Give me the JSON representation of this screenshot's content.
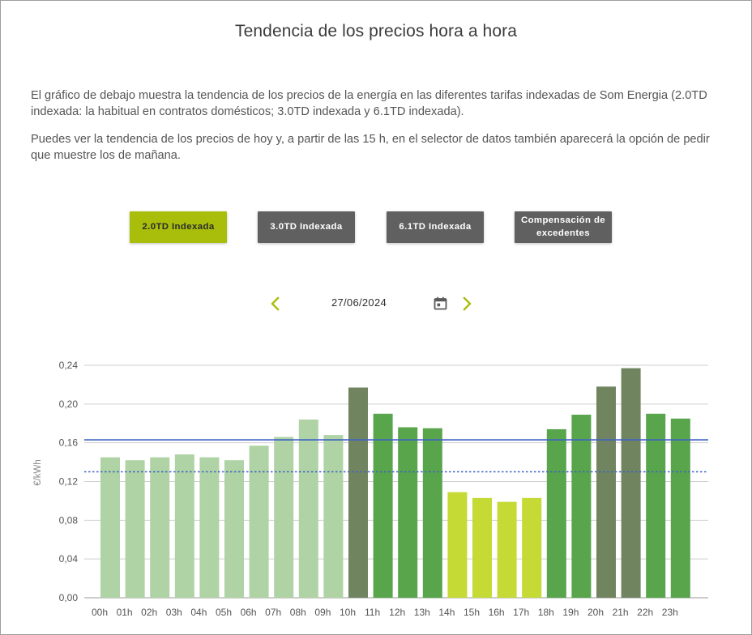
{
  "page": {
    "title": "Tendencia de los precios hora a hora",
    "paragraph1": "El gráfico de debajo muestra la tendencia de los precios de la energía en las diferentes tarifas indexadas de Som Energia (2.0TD indexada: la habitual en contratos domésticos; 3.0TD indexada y 6.1TD indexada).",
    "paragraph2": "Puedes ver la tendencia de los precios de hoy y, a partir de las 15 h, en el selector de datos también aparecerá la opción de pedir que muestre los de mañana."
  },
  "tabs": [
    {
      "label": "2.0TD Indexada",
      "active": true
    },
    {
      "label": "3.0TD Indexada",
      "active": false
    },
    {
      "label": "6.1TD Indexada",
      "active": false
    },
    {
      "label": "Compensación de excedentes",
      "active": false
    }
  ],
  "date_selector": {
    "value": "27/06/2024",
    "prev_icon": "chevron-left-icon",
    "next_icon": "chevron-right-icon",
    "calendar_icon": "calendar-icon"
  },
  "colors": {
    "accent": "#a8be0b",
    "tab_inactive": "#606060",
    "bar_very_light": "#afd3a4",
    "bar_yellow": "#c5da34",
    "bar_green": "#58a54c",
    "bar_dark": "#718460",
    "ref_line": "#3f63c3"
  },
  "chart_data": {
    "type": "bar",
    "ylabel": "€/kWh",
    "ylim": [
      0,
      0.24
    ],
    "yticks": [
      "0,00",
      "0,04",
      "0,08",
      "0,12",
      "0,16",
      "0,20",
      "0,24"
    ],
    "yticks_values": [
      0,
      0.04,
      0.08,
      0.12,
      0.16,
      0.2,
      0.24
    ],
    "categories": [
      "00h",
      "01h",
      "02h",
      "03h",
      "04h",
      "05h",
      "06h",
      "07h",
      "08h",
      "09h",
      "10h",
      "11h",
      "12h",
      "13h",
      "14h",
      "15h",
      "16h",
      "17h",
      "18h",
      "19h",
      "20h",
      "21h",
      "22h",
      "23h"
    ],
    "values": [
      0.145,
      0.142,
      0.145,
      0.148,
      0.145,
      0.142,
      0.157,
      0.166,
      0.184,
      0.168,
      0.217,
      0.19,
      0.176,
      0.175,
      0.109,
      0.103,
      0.099,
      0.103,
      0.174,
      0.189,
      0.218,
      0.237,
      0.19,
      0.185
    ],
    "bar_colors": [
      "#afd3a4",
      "#afd3a4",
      "#afd3a4",
      "#afd3a4",
      "#afd3a4",
      "#afd3a4",
      "#afd3a4",
      "#afd3a4",
      "#afd3a4",
      "#afd3a4",
      "#718460",
      "#58a54c",
      "#58a54c",
      "#58a54c",
      "#c5da34",
      "#c5da34",
      "#c5da34",
      "#c5da34",
      "#58a54c",
      "#58a54c",
      "#718460",
      "#718460",
      "#58a54c",
      "#58a54c"
    ],
    "reference_lines": [
      {
        "value": 0.163,
        "style": "solid",
        "color": "#3f63c3"
      },
      {
        "value": 0.13,
        "style": "dotted",
        "color": "#3f63c3"
      }
    ],
    "grid": true
  }
}
